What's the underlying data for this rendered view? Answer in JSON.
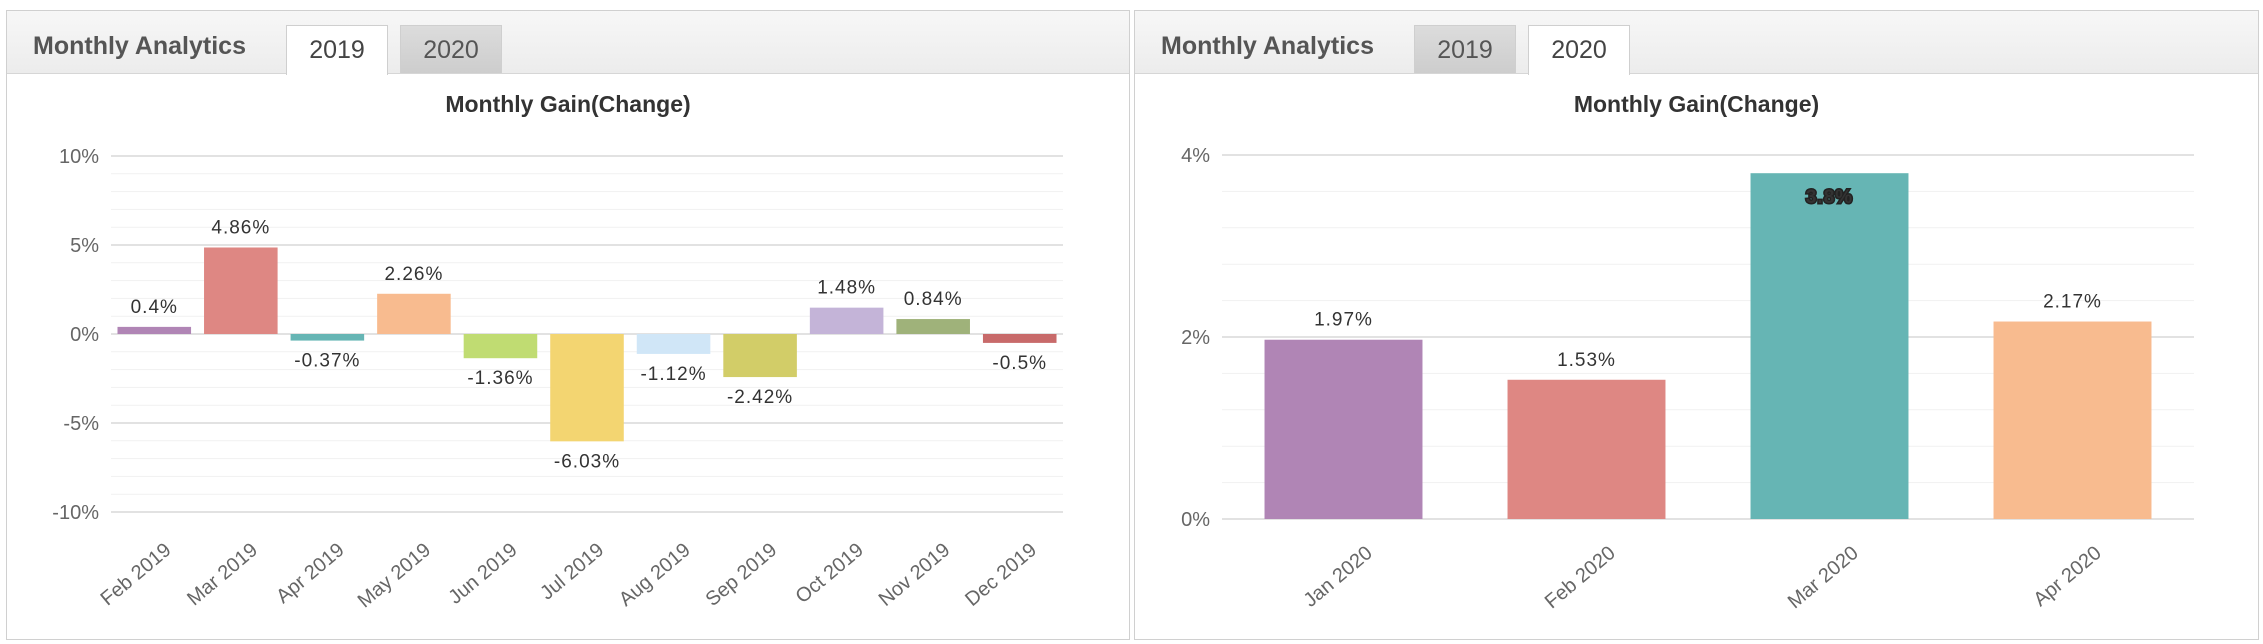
{
  "panels": [
    {
      "title": "Monthly Analytics",
      "tabs": [
        {
          "label": "2019",
          "active": true
        },
        {
          "label": "2020",
          "active": false
        }
      ]
    },
    {
      "title": "Monthly Analytics",
      "tabs": [
        {
          "label": "2019",
          "active": false
        },
        {
          "label": "2020",
          "active": true
        }
      ]
    }
  ],
  "chart_data": [
    {
      "type": "bar",
      "title": "Monthly Gain(Change)",
      "categories": [
        "Feb 2019",
        "Mar 2019",
        "Apr 2019",
        "May 2019",
        "Jun 2019",
        "Jul 2019",
        "Aug 2019",
        "Sep 2019",
        "Oct 2019",
        "Nov 2019",
        "Dec 2019"
      ],
      "values": [
        0.4,
        4.86,
        -0.37,
        2.26,
        -1.36,
        -6.03,
        -1.12,
        -2.42,
        1.48,
        0.84,
        -0.5
      ],
      "labels": [
        "0.4%",
        "4.86%",
        "-0.37%",
        "2.26%",
        "-1.36%",
        "-6.03%",
        "-1.12%",
        "-2.42%",
        "1.48%",
        "0.84%",
        "-0.5%"
      ],
      "colors": [
        "#b085b5",
        "#de8783",
        "#66b5b4",
        "#f8bb8f",
        "#c0dc72",
        "#f3d571",
        "#d0e6f7",
        "#d2cd68",
        "#c4b4d8",
        "#9fb27a",
        "#c86a6a"
      ],
      "ylim": [
        -10,
        10
      ],
      "yticks": [
        10,
        5,
        0,
        -5,
        -10
      ],
      "ytick_labels": [
        "10%",
        "5%",
        "0%",
        "-5%",
        "-10%"
      ],
      "grid": true
    },
    {
      "type": "bar",
      "title": "Monthly Gain(Change)",
      "categories": [
        "Jan 2020",
        "Feb 2020",
        "Mar 2020",
        "Apr 2020"
      ],
      "values": [
        1.97,
        1.53,
        3.8,
        2.17
      ],
      "labels": [
        "1.97%",
        "1.53%",
        "3.8%",
        "2.17%"
      ],
      "colors": [
        "#b085b5",
        "#de8783",
        "#66b5b4",
        "#f8bb8f"
      ],
      "ylim": [
        0,
        4
      ],
      "yticks": [
        4,
        2,
        0
      ],
      "ytick_labels": [
        "4%",
        "2%",
        "0%"
      ],
      "grid": true
    }
  ]
}
